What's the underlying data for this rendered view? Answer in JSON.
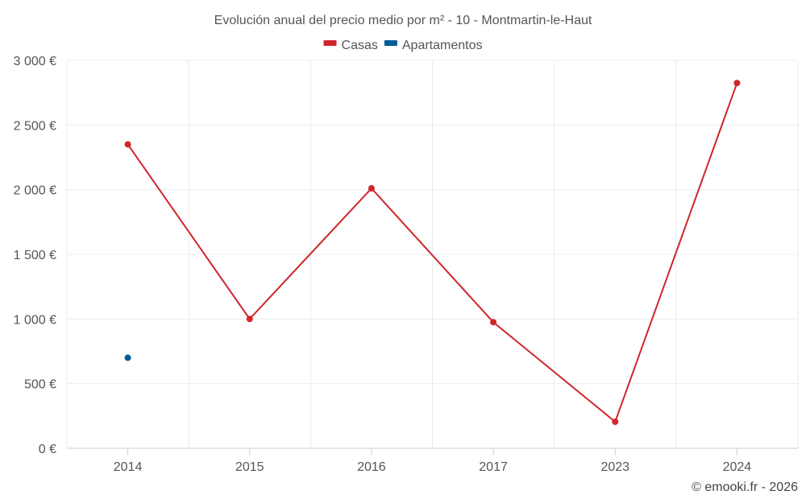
{
  "chart_data": {
    "type": "line",
    "title": "Evolución anual del precio medio por m² - 10 - Montmartin-le-Haut",
    "categories": [
      "2014",
      "2015",
      "2016",
      "2017",
      "2023",
      "2024"
    ],
    "y_tick_labels": [
      "0 €",
      "500 €",
      "1 000 €",
      "1 500 €",
      "2 000 €",
      "2 500 €",
      "3 000 €"
    ],
    "ylim": [
      0,
      3000
    ],
    "y_tick_step": 500,
    "xlabel": "",
    "ylabel": "",
    "grid": true,
    "legend_position": "top-center",
    "series": [
      {
        "name": "Casas",
        "color": "#d0252b",
        "values": [
          2350,
          1000,
          2010,
          975,
          205,
          2825
        ]
      },
      {
        "name": "Apartamentos",
        "color": "#005b99",
        "values": [
          700,
          null,
          null,
          null,
          null,
          null
        ]
      }
    ]
  },
  "credit": "© emooki.fr - 2026"
}
